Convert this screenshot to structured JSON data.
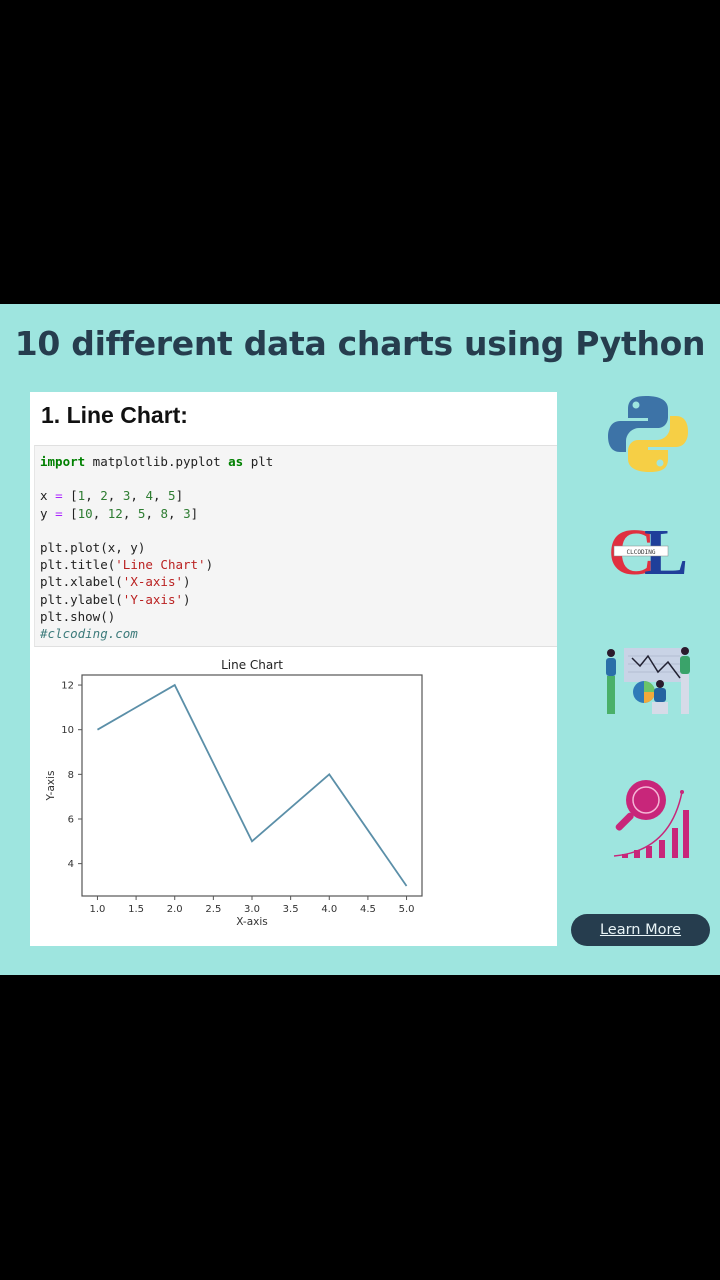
{
  "header": {
    "title": "10 different data charts using Python"
  },
  "card": {
    "title": "1. Line Chart:",
    "code_lines": [
      [
        {
          "t": "import",
          "c": "kw"
        },
        {
          "t": " matplotlib.pyplot ",
          "c": ""
        },
        {
          "t": "as",
          "c": "kw"
        },
        {
          "t": " plt",
          "c": ""
        }
      ],
      [],
      [
        {
          "t": "x ",
          "c": ""
        },
        {
          "t": "=",
          "c": "op"
        },
        {
          "t": " [",
          "c": ""
        },
        {
          "t": "1",
          "c": "num"
        },
        {
          "t": ", ",
          "c": ""
        },
        {
          "t": "2",
          "c": "num"
        },
        {
          "t": ", ",
          "c": ""
        },
        {
          "t": "3",
          "c": "num"
        },
        {
          "t": ", ",
          "c": ""
        },
        {
          "t": "4",
          "c": "num"
        },
        {
          "t": ", ",
          "c": ""
        },
        {
          "t": "5",
          "c": "num"
        },
        {
          "t": "]",
          "c": ""
        }
      ],
      [
        {
          "t": "y ",
          "c": ""
        },
        {
          "t": "=",
          "c": "op"
        },
        {
          "t": " [",
          "c": ""
        },
        {
          "t": "10",
          "c": "num"
        },
        {
          "t": ", ",
          "c": ""
        },
        {
          "t": "12",
          "c": "num"
        },
        {
          "t": ", ",
          "c": ""
        },
        {
          "t": "5",
          "c": "num"
        },
        {
          "t": ", ",
          "c": ""
        },
        {
          "t": "8",
          "c": "num"
        },
        {
          "t": ", ",
          "c": ""
        },
        {
          "t": "3",
          "c": "num"
        },
        {
          "t": "]",
          "c": ""
        }
      ],
      [],
      [
        {
          "t": "plt.plot(x, y)",
          "c": ""
        }
      ],
      [
        {
          "t": "plt.title(",
          "c": ""
        },
        {
          "t": "'Line Chart'",
          "c": "str"
        },
        {
          "t": ")",
          "c": ""
        }
      ],
      [
        {
          "t": "plt.xlabel(",
          "c": ""
        },
        {
          "t": "'X-axis'",
          "c": "str"
        },
        {
          "t": ")",
          "c": ""
        }
      ],
      [
        {
          "t": "plt.ylabel(",
          "c": ""
        },
        {
          "t": "'Y-axis'",
          "c": "str"
        },
        {
          "t": ")",
          "c": ""
        }
      ],
      [
        {
          "t": "plt.show()",
          "c": ""
        }
      ],
      [
        {
          "t": "#clcoding.com",
          "c": "cmt"
        }
      ]
    ]
  },
  "chart_data": {
    "type": "line",
    "title": "Line Chart",
    "xlabel": "X-axis",
    "ylabel": "Y-axis",
    "x": [
      1,
      2,
      3,
      4,
      5
    ],
    "series": [
      {
        "name": "y",
        "values": [
          10,
          12,
          5,
          8,
          3
        ],
        "color": "#5b8fa8"
      }
    ],
    "xticks": [
      "1.0",
      "1.5",
      "2.0",
      "2.5",
      "3.0",
      "3.5",
      "4.0",
      "4.5",
      "5.0"
    ],
    "yticks": [
      "4",
      "6",
      "8",
      "10",
      "12"
    ],
    "xlim": [
      0.8,
      5.2
    ],
    "ylim": [
      2.55,
      12.45
    ],
    "grid": false,
    "legend": null
  },
  "sidebar": {
    "icons": [
      {
        "name": "python-logo-icon"
      },
      {
        "name": "clcoding-logo-icon",
        "text": "CLCODING"
      },
      {
        "name": "data-team-illustration-icon"
      },
      {
        "name": "analytics-magnifier-icon"
      }
    ],
    "learn_more_label": "Learn More"
  },
  "colors": {
    "panel_bg": "#9ee5df",
    "title": "#263d4e",
    "button_bg": "#263d4e",
    "line": "#5b8fa8"
  }
}
